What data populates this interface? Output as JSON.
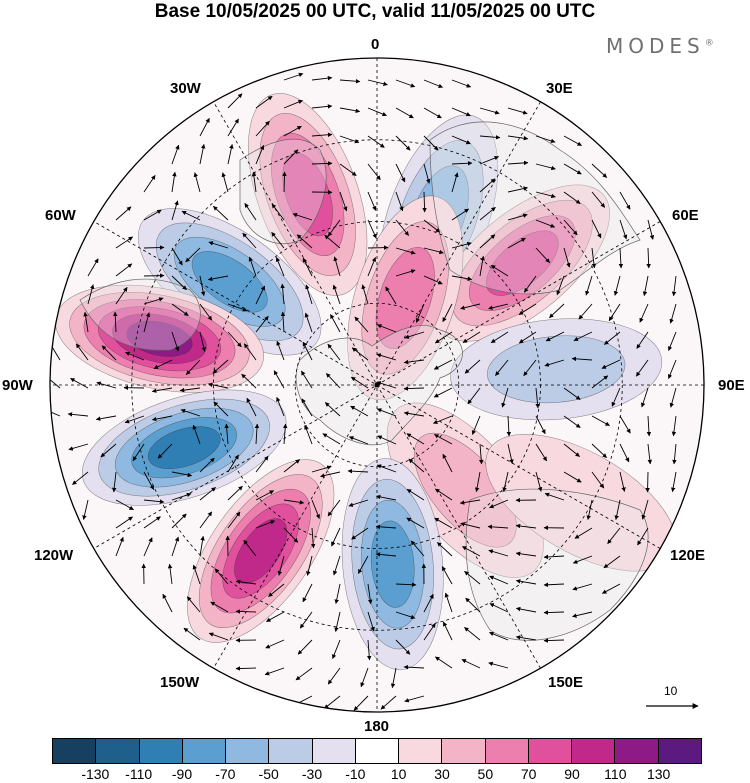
{
  "title": "Base 10/05/2025 00 UTC, valid 11/05/2025 00 UTC",
  "brand": "MODES",
  "brand_mark": "®",
  "meridian_labels": {
    "lon_0": "0",
    "lon_30e": "30E",
    "lon_60e": "60E",
    "lon_90e": "90E",
    "lon_120e": "120E",
    "lon_150e": "150E",
    "lon_180": "180",
    "lon_150w": "150W",
    "lon_120w": "120W",
    "lon_90w": "90W",
    "lon_60w": "60W",
    "lon_30w": "30W"
  },
  "vector_scale_label": "10",
  "colorbar": {
    "colors": [
      "#173f5f",
      "#1e5f8c",
      "#2f7fb5",
      "#5a9fd0",
      "#8fb9e0",
      "#bccce6",
      "#e4e0f0",
      "#ffffff",
      "#f9d9e0",
      "#f4b4c8",
      "#ec7fae",
      "#e1509c",
      "#c0288a",
      "#8e1a86",
      "#5c1a80"
    ],
    "tick_labels": [
      "-130",
      "-110",
      "-90",
      "-70",
      "-50",
      "-30",
      "-10",
      "10",
      "30",
      "50",
      "70",
      "90",
      "110",
      "130"
    ]
  },
  "anomaly_cells": [
    {
      "lon": 20,
      "r": 0.55,
      "value": -60
    },
    {
      "lon": -20,
      "r": 0.62,
      "value": 80
    },
    {
      "lon": 50,
      "r": 0.58,
      "value": 90
    },
    {
      "lon": 18,
      "r": 0.28,
      "value": 70
    },
    {
      "lon": -55,
      "r": 0.55,
      "value": -90
    },
    {
      "lon": -78,
      "r": 0.68,
      "value": 125
    },
    {
      "lon": 85,
      "r": 0.55,
      "value": -50
    },
    {
      "lon": -108,
      "r": 0.62,
      "value": -115
    },
    {
      "lon": 140,
      "r": 0.42,
      "value": 40
    },
    {
      "lon": -145,
      "r": 0.62,
      "value": 110
    },
    {
      "lon": 175,
      "r": 0.55,
      "value": -80
    },
    {
      "lon": 120,
      "r": 0.72,
      "value": 30
    }
  ]
}
